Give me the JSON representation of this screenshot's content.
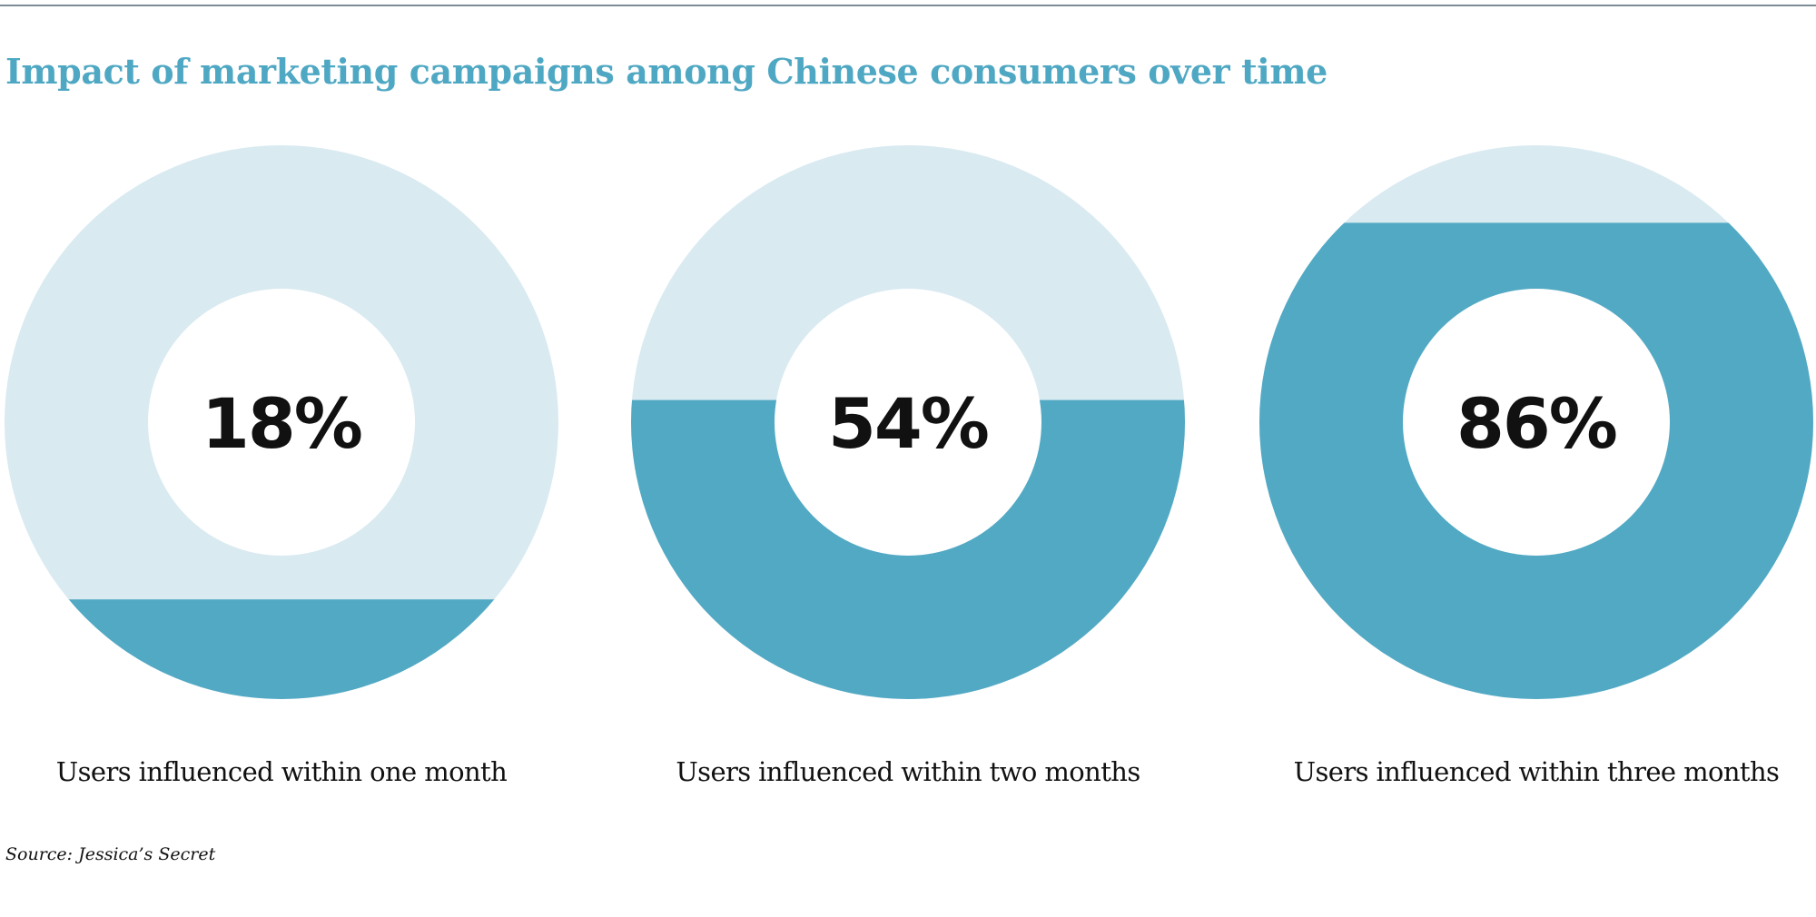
{
  "title": "Impact of marketing campaigns among Chinese consumers over time",
  "source": "Source: Jessica’s Secret",
  "colors": {
    "title": "#4fa8c3",
    "filled": "#52a9c4",
    "unfilled": "#d9eaf1",
    "value_text": "#111111",
    "label_text": "#111111",
    "rule": "#7d8c94"
  },
  "chart_data": {
    "type": "pie",
    "style": "donut",
    "fill_direction": "bottom-up",
    "title": "Impact of marketing campaigns among Chinese consumers over time",
    "unit": "%",
    "charts": [
      {
        "label": "Users influenced within one month",
        "value": 18,
        "value_label": "18%"
      },
      {
        "label": "Users influenced within two months",
        "value": 54,
        "value_label": "54%"
      },
      {
        "label": "Users influenced within three months",
        "value": 86,
        "value_label": "86%"
      }
    ]
  }
}
